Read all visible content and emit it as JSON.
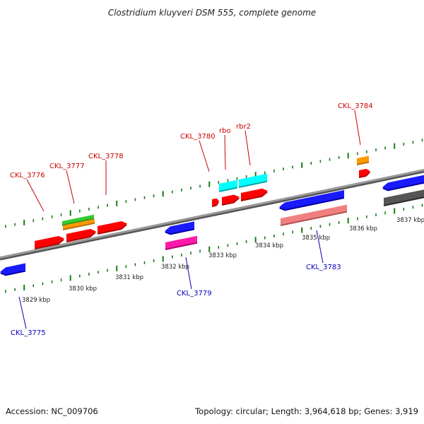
{
  "title": "Clostridium kluyveri DSM 555, complete genome",
  "footer": {
    "accession": "Accession: NC_009706",
    "summary": "Topology: circular; Length: 3,964,618 bp; Genes: 3,919"
  },
  "colors": {
    "forward_label": "#cc0000",
    "reverse_label": "#0000bb",
    "ticks": "#1a7a1a",
    "backbone": "#888888"
  },
  "kbp_labels": [
    "3829 kbp",
    "3830 kbp",
    "3831 kbp",
    "3832 kbp",
    "3833 kbp",
    "3834 kbp",
    "3835 kbp",
    "3836 kbp",
    "3837 kbp"
  ],
  "gene_labels": [
    {
      "text": "CKL_3776",
      "strand": "forward"
    },
    {
      "text": "CKL_3777",
      "strand": "forward"
    },
    {
      "text": "CKL_3778",
      "strand": "forward"
    },
    {
      "text": "CKL_3780",
      "strand": "forward"
    },
    {
      "text": "rbo",
      "strand": "forward"
    },
    {
      "text": "rbr2",
      "strand": "forward"
    },
    {
      "text": "CKL_3784",
      "strand": "forward"
    },
    {
      "text": "CKL_3775",
      "strand": "reverse"
    },
    {
      "text": "CKL_3779",
      "strand": "reverse"
    },
    {
      "text": "CKL_3783",
      "strand": "reverse"
    }
  ],
  "features": [
    {
      "name": "feature-red-1",
      "color": "#ff0000",
      "dark": "#b00000"
    },
    {
      "name": "feature-red-2",
      "color": "#ff0000",
      "dark": "#b00000"
    },
    {
      "name": "feature-red-3",
      "color": "#ff0000",
      "dark": "#b00000"
    },
    {
      "name": "feature-green",
      "color": "#33cc33",
      "dark": "#1d8a1d"
    },
    {
      "name": "feature-orange",
      "color": "#ff9900",
      "dark": "#b86e00"
    },
    {
      "name": "feature-blue-left",
      "color": "#1a1aff",
      "dark": "#0000a0"
    },
    {
      "name": "feature-blue-3779",
      "color": "#1a1aff",
      "dark": "#0000a0"
    },
    {
      "name": "feature-magenta",
      "color": "#ff1aa8",
      "dark": "#b0006e"
    },
    {
      "name": "feature-red-small",
      "color": "#ff0000",
      "dark": "#b00000"
    },
    {
      "name": "feature-red-rbo",
      "color": "#ff0000",
      "dark": "#b00000"
    },
    {
      "name": "feature-red-rbr2",
      "color": "#ff0000",
      "dark": "#b00000"
    },
    {
      "name": "feature-cyan-1",
      "color": "#00ffff",
      "dark": "#00a6a6"
    },
    {
      "name": "feature-cyan-2",
      "color": "#00ffff",
      "dark": "#00a6a6"
    },
    {
      "name": "feature-blue-3783",
      "color": "#1a1aff",
      "dark": "#0000a0"
    },
    {
      "name": "feature-salmon",
      "color": "#f08080",
      "dark": "#b05050"
    },
    {
      "name": "feature-orange-3784",
      "color": "#ff9900",
      "dark": "#b86e00"
    },
    {
      "name": "feature-red-3784",
      "color": "#ff0000",
      "dark": "#b00000"
    },
    {
      "name": "feature-blue-right",
      "color": "#1a1aff",
      "dark": "#0000a0"
    },
    {
      "name": "feature-gray-right",
      "color": "#555555",
      "dark": "#2a2a2a"
    }
  ]
}
